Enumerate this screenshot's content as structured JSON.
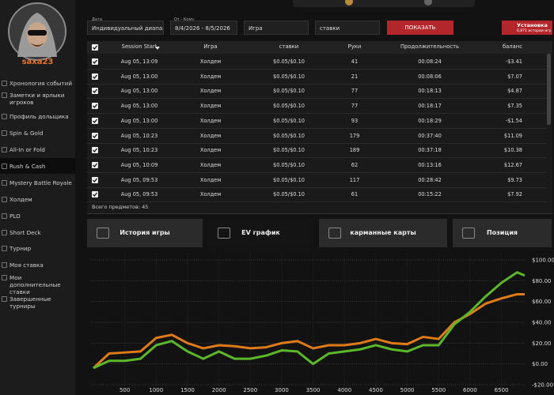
{
  "sidebar": {
    "username": "saxa23",
    "menu": [
      "Хронология событий",
      "Заметки и ярлыки игроков",
      "Профиль дольщика",
      "Spin & Gold",
      "All-In or Fold",
      "Rush & Cash",
      "Mystery Battle Royale",
      "Холдем",
      "PLO",
      "Short Deck",
      "Турнир",
      "Моя ставка",
      "Мои дополнительные ставки",
      "Завершенные турниры"
    ]
  },
  "filters": {
    "date_label": "Дата",
    "range": "Индивидуальный диапазон",
    "dates_label": "От - Кому",
    "dates": "8/4/2026 - 8/5/2026",
    "game": "Игра",
    "stakes": "ставки",
    "show_button": "ПОКАЗАТЬ",
    "install_button": "Установка",
    "install_sub": "6,871 истории игр"
  },
  "table": {
    "columns": [
      "Session Start",
      "Игра",
      "ставки",
      "Руки",
      "Продолжительность",
      "баланс"
    ],
    "rows": [
      [
        "Aug 05, 13:09",
        "Холдем",
        "$0.05/$0.10",
        "41",
        "00:08:24",
        "-$3.41"
      ],
      [
        "Aug 05, 13:00",
        "Холдем",
        "$0.05/$0.10",
        "21",
        "00:08:06",
        "$7.07"
      ],
      [
        "Aug 05, 13:00",
        "Холдем",
        "$0.05/$0.10",
        "77",
        "00:18:13",
        "$4.87"
      ],
      [
        "Aug 05, 13:00",
        "Холдем",
        "$0.05/$0.10",
        "77",
        "00:18:17",
        "$7.35"
      ],
      [
        "Aug 05, 13:00",
        "Холдем",
        "$0.05/$0.10",
        "93",
        "00:18:29",
        "-$1.54"
      ],
      [
        "Aug 05, 10:23",
        "Холдем",
        "$0.05/$0.10",
        "179",
        "00:37:40",
        "$11.09"
      ],
      [
        "Aug 05, 10:23",
        "Холдем",
        "$0.05/$0.10",
        "189",
        "00:37:18",
        "$10.38"
      ],
      [
        "Aug 05, 10:09",
        "Холдем",
        "$0.05/$0.10",
        "62",
        "00:13:16",
        "$12.67"
      ],
      [
        "Aug 05, 09:53",
        "Холдем",
        "$0.05/$0.10",
        "117",
        "00:28:42",
        "$9.73"
      ],
      [
        "Aug 05, 09:53",
        "Холдем",
        "$0.05/$0.10",
        "61",
        "00:15:22",
        "$7.92"
      ]
    ],
    "total": "Всего предметов: 45"
  },
  "tabs": [
    "История игры",
    "EV график",
    "карманные карты",
    "Позиция"
  ],
  "chart_data": {
    "type": "line",
    "x": [
      0,
      250,
      500,
      750,
      1000,
      1250,
      1500,
      1750,
      2000,
      2250,
      2500,
      2750,
      3000,
      3250,
      3500,
      3750,
      4000,
      4250,
      4500,
      4750,
      5000,
      5250,
      5500,
      5750,
      6000,
      6250,
      6500,
      6750,
      6871
    ],
    "series": [
      {
        "color": "#e07b1a",
        "values": [
          -4,
          10,
          11,
          12,
          25,
          28,
          20,
          15,
          18,
          17,
          15,
          16,
          20,
          22,
          15,
          18,
          18,
          20,
          24,
          20,
          19,
          26,
          24,
          40,
          48,
          58,
          63,
          67,
          67
        ]
      },
      {
        "color": "#5cb82a",
        "values": [
          -4,
          3,
          3,
          5,
          18,
          22,
          12,
          5,
          12,
          5,
          5,
          8,
          13,
          12,
          0,
          10,
          12,
          14,
          18,
          14,
          12,
          18,
          18,
          38,
          50,
          65,
          78,
          88,
          85
        ]
      }
    ],
    "xlim": [
      0,
      6871
    ],
    "ylim": [
      -25,
      105
    ],
    "xticks": [
      500,
      1000,
      1500,
      2000,
      2500,
      3000,
      3500,
      4000,
      4500,
      5000,
      5500,
      6000,
      6500
    ],
    "yticks": [
      {
        "value": 100,
        "label": "$100.00"
      },
      {
        "value": 80,
        "label": "$80.00"
      },
      {
        "value": 60,
        "label": "$60.00"
      },
      {
        "value": 40,
        "label": "$40.00"
      },
      {
        "value": 20,
        "label": "$20.00"
      },
      {
        "value": 0,
        "label": "$0.00"
      },
      {
        "value": -20,
        "label": "-$20.00"
      }
    ],
    "grid": true
  }
}
